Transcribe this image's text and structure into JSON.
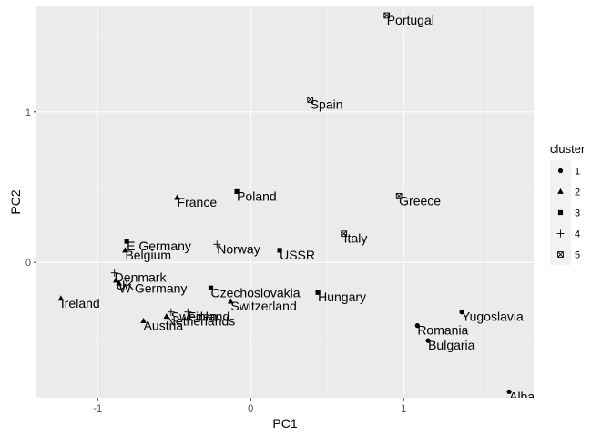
{
  "chart_data": {
    "type": "scatter",
    "xlabel": "PC1",
    "ylabel": "PC2",
    "xlim": [
      -1.4,
      1.85
    ],
    "ylim": [
      -0.9,
      1.7
    ],
    "x_ticks": [
      -1,
      0,
      1
    ],
    "x_tick_labels": [
      "-1",
      "0",
      "1"
    ],
    "y_ticks": [
      0,
      1
    ],
    "y_tick_labels": [
      "0",
      "1"
    ],
    "grid": true,
    "legend": {
      "title": "cluster",
      "position": "right",
      "entries": [
        {
          "label": "1",
          "shape": "circle"
        },
        {
          "label": "2",
          "shape": "triangle"
        },
        {
          "label": "3",
          "shape": "square"
        },
        {
          "label": "4",
          "shape": "plus"
        },
        {
          "label": "5",
          "shape": "square-x"
        }
      ]
    },
    "points": [
      {
        "label": "Portugal",
        "x": 0.89,
        "y": 1.64,
        "cluster": "5"
      },
      {
        "label": "Spain",
        "x": 0.39,
        "y": 1.08,
        "cluster": "5"
      },
      {
        "label": "Greece",
        "x": 0.97,
        "y": 0.44,
        "cluster": "5"
      },
      {
        "label": "Italy",
        "x": 0.61,
        "y": 0.19,
        "cluster": "5"
      },
      {
        "label": "Poland",
        "x": -0.09,
        "y": 0.47,
        "cluster": "3"
      },
      {
        "label": "E Germany",
        "x": -0.81,
        "y": 0.14,
        "cluster": "3"
      },
      {
        "label": "USSR",
        "x": 0.19,
        "y": 0.08,
        "cluster": "3"
      },
      {
        "label": "Czechoslovakia",
        "x": -0.26,
        "y": -0.17,
        "cluster": "3"
      },
      {
        "label": "Hungary",
        "x": 0.44,
        "y": -0.2,
        "cluster": "3"
      },
      {
        "label": "France",
        "x": -0.48,
        "y": 0.43,
        "cluster": "2"
      },
      {
        "label": "Belgium",
        "x": -0.82,
        "y": 0.08,
        "cluster": "2"
      },
      {
        "label": "Ireland",
        "x": -1.24,
        "y": -0.24,
        "cluster": "2"
      },
      {
        "label": "Switzerland",
        "x": -0.13,
        "y": -0.26,
        "cluster": "2"
      },
      {
        "label": "Austria",
        "x": -0.7,
        "y": -0.39,
        "cluster": "2"
      },
      {
        "label": "Netherlands",
        "x": -0.55,
        "y": -0.36,
        "cluster": "2"
      },
      {
        "label": "W Germany",
        "x": -0.86,
        "y": -0.14,
        "cluster": "2"
      },
      {
        "label": "UK",
        "x": -0.88,
        "y": -0.12,
        "cluster": "2"
      },
      {
        "label": "Norway",
        "x": -0.22,
        "y": 0.12,
        "cluster": "4"
      },
      {
        "label": "Denmark",
        "x": -0.89,
        "y": -0.07,
        "cluster": "4"
      },
      {
        "label": "Sweden",
        "x": -0.52,
        "y": -0.33,
        "cluster": "4"
      },
      {
        "label": "Finland",
        "x": -0.41,
        "y": -0.33,
        "cluster": "4"
      },
      {
        "label": "Yugoslavia",
        "x": 1.38,
        "y": -0.33,
        "cluster": "1"
      },
      {
        "label": "Romania",
        "x": 1.09,
        "y": -0.42,
        "cluster": "1"
      },
      {
        "label": "Bulgaria",
        "x": 1.16,
        "y": -0.52,
        "cluster": "1"
      },
      {
        "label": "Albania",
        "x": 1.69,
        "y": -0.86,
        "cluster": "1"
      }
    ]
  }
}
